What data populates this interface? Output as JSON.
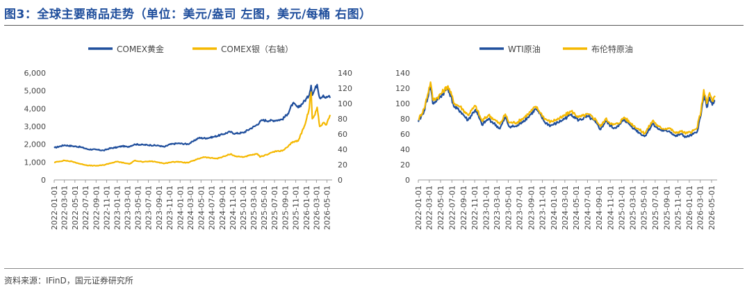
{
  "figure": {
    "title": "图3：全球主要商品走势（单位：美元/盎司 左图，美元/每桶 右图）",
    "source": "资料来源：IFinD，国元证券研究所"
  },
  "colors": {
    "blue": "#1f4e9c",
    "gold": "#f5b800",
    "title": "#1f4e9c"
  },
  "chart_data": [
    {
      "type": "line",
      "legend_position": "top",
      "x_ticks": [
        "2022-01-01",
        "2022-03-01",
        "2022-05-01",
        "2022-07-01",
        "2022-09-01",
        "2022-11-01",
        "2023-01-01",
        "2023-03-01",
        "2023-05-01",
        "2023-07-01",
        "2023-09-01",
        "2023-11-01",
        "2024-01-01",
        "2024-03-01",
        "2024-05-01",
        "2024-07-01",
        "2024-09-01",
        "2024-11-01",
        "2025-01-01",
        "2025-03-01",
        "2025-05-01",
        "2025-07-01",
        "2025-09-01",
        "2025-11-01",
        "2026-01-01",
        "2026-03-01",
        "2026-05-01"
      ],
      "y_left": {
        "ticks": [
          "0",
          "1,000",
          "2,000",
          "3,000",
          "4,000",
          "5,000",
          "6,000"
        ],
        "range": [
          0,
          6000
        ]
      },
      "y_right": {
        "ticks": [
          "0",
          "20",
          "40",
          "60",
          "80",
          "100",
          "120",
          "140"
        ],
        "range": [
          0,
          140
        ]
      },
      "series": [
        {
          "name": "COMEX黄金",
          "axis": "left",
          "color": "#1f4e9c",
          "points": [
            [
              "2022-01-01",
              1800
            ],
            [
              "2022-03-01",
              1950
            ],
            [
              "2022-04-15",
              1900
            ],
            [
              "2022-06-01",
              1850
            ],
            [
              "2022-07-15",
              1720
            ],
            [
              "2022-09-01",
              1700
            ],
            [
              "2022-10-15",
              1650
            ],
            [
              "2022-11-15",
              1760
            ],
            [
              "2023-01-01",
              1830
            ],
            [
              "2023-02-01",
              1900
            ],
            [
              "2023-03-01",
              1850
            ],
            [
              "2023-04-15",
              2000
            ],
            [
              "2023-06-01",
              1970
            ],
            [
              "2023-07-15",
              1950
            ],
            [
              "2023-09-01",
              1920
            ],
            [
              "2023-10-01",
              1850
            ],
            [
              "2023-11-01",
              1990
            ],
            [
              "2023-12-15",
              2050
            ],
            [
              "2024-01-15",
              2030
            ],
            [
              "2024-02-15",
              2010
            ],
            [
              "2024-03-15",
              2150
            ],
            [
              "2024-04-15",
              2350
            ],
            [
              "2024-06-01",
              2340
            ],
            [
              "2024-07-15",
              2420
            ],
            [
              "2024-09-01",
              2550
            ],
            [
              "2024-10-15",
              2700
            ],
            [
              "2024-11-15",
              2600
            ],
            [
              "2025-01-01",
              2650
            ],
            [
              "2025-02-15",
              2900
            ],
            [
              "2025-03-15",
              3050
            ],
            [
              "2025-04-20",
              3350
            ],
            [
              "2025-06-01",
              3320
            ],
            [
              "2025-07-15",
              3350
            ],
            [
              "2025-08-15",
              3400
            ],
            [
              "2025-09-15",
              3700
            ],
            [
              "2025-10-15",
              4300
            ],
            [
              "2025-11-15",
              4050
            ],
            [
              "2025-12-15",
              4350
            ],
            [
              "2026-01-15",
              4700
            ],
            [
              "2026-01-29",
              5300
            ],
            [
              "2026-02-05",
              4750
            ],
            [
              "2026-02-20",
              5100
            ],
            [
              "2026-03-05",
              5350
            ],
            [
              "2026-03-20",
              4600
            ],
            [
              "2026-04-10",
              4750
            ],
            [
              "2026-04-25",
              4600
            ],
            [
              "2026-05-10",
              4700
            ],
            [
              "2026-05-20",
              4600
            ]
          ]
        },
        {
          "name": "COMEX银（右轴）",
          "axis": "right",
          "color": "#f5b800",
          "points": [
            [
              "2022-01-01",
              23
            ],
            [
              "2022-03-01",
              25.5
            ],
            [
              "2022-04-15",
              24
            ],
            [
              "2022-06-01",
              21
            ],
            [
              "2022-07-15",
              19
            ],
            [
              "2022-09-01",
              18.5
            ],
            [
              "2022-10-15",
              19.5
            ],
            [
              "2022-11-15",
              21.5
            ],
            [
              "2023-01-01",
              24
            ],
            [
              "2023-02-15",
              22
            ],
            [
              "2023-03-15",
              21
            ],
            [
              "2023-04-15",
              25.5
            ],
            [
              "2023-06-01",
              23.5
            ],
            [
              "2023-07-15",
              24.5
            ],
            [
              "2023-09-01",
              23
            ],
            [
              "2023-10-01",
              21.5
            ],
            [
              "2023-11-01",
              23
            ],
            [
              "2023-12-15",
              24
            ],
            [
              "2024-01-15",
              23
            ],
            [
              "2024-02-15",
              22.5
            ],
            [
              "2024-03-15",
              25
            ],
            [
              "2024-05-15",
              30
            ],
            [
              "2024-06-15",
              29
            ],
            [
              "2024-08-01",
              28
            ],
            [
              "2024-09-15",
              31
            ],
            [
              "2024-10-20",
              34
            ],
            [
              "2024-11-15",
              31
            ],
            [
              "2025-01-01",
              30
            ],
            [
              "2025-02-15",
              32.5
            ],
            [
              "2025-03-25",
              34
            ],
            [
              "2025-04-08",
              30
            ],
            [
              "2025-05-15",
              33
            ],
            [
              "2025-06-15",
              36
            ],
            [
              "2025-07-20",
              38
            ],
            [
              "2025-08-15",
              38
            ],
            [
              "2025-09-15",
              43
            ],
            [
              "2025-10-15",
              50
            ],
            [
              "2025-11-15",
              51
            ],
            [
              "2025-12-20",
              70
            ],
            [
              "2026-01-15",
              90
            ],
            [
              "2026-01-29",
              115
            ],
            [
              "2026-02-05",
              80
            ],
            [
              "2026-02-20",
              85
            ],
            [
              "2026-03-05",
              95
            ],
            [
              "2026-03-20",
              70
            ],
            [
              "2026-04-10",
              75
            ],
            [
              "2026-04-25",
              72
            ],
            [
              "2026-05-10",
              80
            ],
            [
              "2026-05-20",
              85
            ]
          ]
        }
      ]
    },
    {
      "type": "line",
      "legend_position": "top",
      "x_ticks": [
        "2022-01-01",
        "2022-03-01",
        "2022-05-01",
        "2022-07-01",
        "2022-09-01",
        "2022-11-01",
        "2023-01-01",
        "2023-03-01",
        "2023-05-01",
        "2023-07-01",
        "2023-09-01",
        "2023-11-01",
        "2024-01-01",
        "2024-03-01",
        "2024-05-01",
        "2024-07-01",
        "2024-09-01",
        "2024-11-01",
        "2025-01-01",
        "2025-03-01",
        "2025-05-01",
        "2025-07-01",
        "2025-09-01",
        "2025-11-01",
        "2026-01-01",
        "2026-03-01",
        "2026-05-01"
      ],
      "y_left": {
        "ticks": [
          "0",
          "20",
          "40",
          "60",
          "80",
          "100",
          "120",
          "140"
        ],
        "range": [
          0,
          140
        ]
      },
      "series": [
        {
          "name": "WTI原油",
          "axis": "left",
          "color": "#1f4e9c",
          "points": [
            [
              "2022-01-01",
              76
            ],
            [
              "2022-02-01",
              90
            ],
            [
              "2022-03-08",
              123
            ],
            [
              "2022-03-20",
              100
            ],
            [
              "2022-04-15",
              105
            ],
            [
              "2022-06-10",
              120
            ],
            [
              "2022-07-15",
              95
            ],
            [
              "2022-08-15",
              90
            ],
            [
              "2022-09-25",
              78
            ],
            [
              "2022-11-05",
              92
            ],
            [
              "2022-12-10",
              72
            ],
            [
              "2023-01-15",
              80
            ],
            [
              "2023-03-17",
              67
            ],
            [
              "2023-04-15",
              82
            ],
            [
              "2023-05-05",
              70
            ],
            [
              "2023-06-15",
              70
            ],
            [
              "2023-07-15",
              76
            ],
            [
              "2023-08-15",
              82
            ],
            [
              "2023-09-27",
              93
            ],
            [
              "2023-10-15",
              87
            ],
            [
              "2023-11-15",
              75
            ],
            [
              "2023-12-15",
              71
            ],
            [
              "2024-01-15",
              74
            ],
            [
              "2024-02-15",
              78
            ],
            [
              "2024-04-05",
              86
            ],
            [
              "2024-05-15",
              78
            ],
            [
              "2024-07-05",
              83
            ],
            [
              "2024-08-15",
              75
            ],
            [
              "2024-09-10",
              66
            ],
            [
              "2024-10-07",
              77
            ],
            [
              "2024-11-15",
              68
            ],
            [
              "2024-12-15",
              70
            ],
            [
              "2025-01-15",
              79
            ],
            [
              "2025-02-15",
              72
            ],
            [
              "2025-04-05",
              62
            ],
            [
              "2025-05-05",
              57
            ],
            [
              "2025-06-20",
              74
            ],
            [
              "2025-07-15",
              67
            ],
            [
              "2025-08-15",
              64
            ],
            [
              "2025-09-15",
              64
            ],
            [
              "2025-10-20",
              57
            ],
            [
              "2025-11-15",
              60
            ],
            [
              "2025-12-15",
              56
            ],
            [
              "2026-01-15",
              59
            ],
            [
              "2026-02-10",
              62
            ],
            [
              "2026-03-05",
              85
            ],
            [
              "2026-03-20",
              112
            ],
            [
              "2026-04-05",
              95
            ],
            [
              "2026-04-20",
              108
            ],
            [
              "2026-05-05",
              98
            ],
            [
              "2026-05-20",
              104
            ]
          ]
        },
        {
          "name": "布伦特原油",
          "axis": "left",
          "color": "#f5b800",
          "points": [
            [
              "2022-01-01",
              79
            ],
            [
              "2022-02-01",
              93
            ],
            [
              "2022-03-08",
              128
            ],
            [
              "2022-03-20",
              105
            ],
            [
              "2022-04-15",
              108
            ],
            [
              "2022-06-10",
              123
            ],
            [
              "2022-07-15",
              100
            ],
            [
              "2022-08-15",
              96
            ],
            [
              "2022-09-25",
              85
            ],
            [
              "2022-11-05",
              97
            ],
            [
              "2022-12-10",
              77
            ],
            [
              "2023-01-15",
              85
            ],
            [
              "2023-03-17",
              73
            ],
            [
              "2023-04-15",
              86
            ],
            [
              "2023-05-05",
              75
            ],
            [
              "2023-06-15",
              75
            ],
            [
              "2023-07-15",
              80
            ],
            [
              "2023-08-15",
              86
            ],
            [
              "2023-09-27",
              96
            ],
            [
              "2023-10-15",
              90
            ],
            [
              "2023-11-15",
              80
            ],
            [
              "2023-12-15",
              76
            ],
            [
              "2024-01-15",
              79
            ],
            [
              "2024-02-15",
              82
            ],
            [
              "2024-04-05",
              90
            ],
            [
              "2024-05-15",
              82
            ],
            [
              "2024-07-05",
              86
            ],
            [
              "2024-08-15",
              79
            ],
            [
              "2024-09-10",
              70
            ],
            [
              "2024-10-07",
              80
            ],
            [
              "2024-11-15",
              72
            ],
            [
              "2024-12-15",
              74
            ],
            [
              "2025-01-15",
              82
            ],
            [
              "2025-02-15",
              75
            ],
            [
              "2025-04-05",
              66
            ],
            [
              "2025-05-05",
              61
            ],
            [
              "2025-06-20",
              78
            ],
            [
              "2025-07-15",
              70
            ],
            [
              "2025-08-15",
              67
            ],
            [
              "2025-09-15",
              68
            ],
            [
              "2025-10-20",
              61
            ],
            [
              "2025-11-15",
              64
            ],
            [
              "2025-12-15",
              61
            ],
            [
              "2026-01-15",
              63
            ],
            [
              "2026-02-10",
              67
            ],
            [
              "2026-03-05",
              90
            ],
            [
              "2026-03-20",
              118
            ],
            [
              "2026-04-05",
              100
            ],
            [
              "2026-04-20",
              114
            ],
            [
              "2026-05-05",
              103
            ],
            [
              "2026-05-20",
              110
            ]
          ]
        }
      ]
    }
  ]
}
